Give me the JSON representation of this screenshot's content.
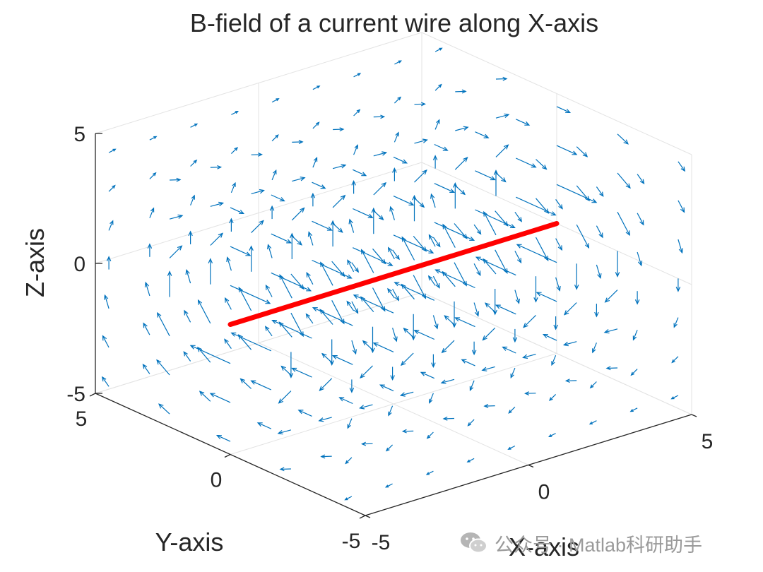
{
  "chart_data": {
    "type": "quiver3",
    "title": "B-field of a current wire along X-axis",
    "xlabel": "X-axis",
    "ylabel": "Y-axis",
    "zlabel": "Z-axis",
    "xlim": [
      -5,
      5
    ],
    "ylim": [
      -5,
      5
    ],
    "zlim": [
      -5,
      5
    ],
    "xticks": [
      "-5",
      "0",
      "5"
    ],
    "yticks": [
      "-5",
      "0",
      "5"
    ],
    "zticks": [
      "-5",
      "0",
      "5"
    ],
    "grid": true,
    "wire": {
      "x": [
        -5,
        5
      ],
      "y": [
        0,
        0
      ],
      "z": [
        0,
        0
      ],
      "color": "#ff0000"
    },
    "field": {
      "grid_x": [
        -5,
        -3.75,
        -2.5,
        -1.25,
        0,
        1.25,
        2.5,
        3.75,
        5
      ],
      "grid_y": [
        -4.5,
        -2.25,
        0,
        2.25,
        4.5
      ],
      "grid_z": [
        -4.5,
        -3,
        -1.5,
        0,
        1.5,
        3,
        4.5
      ],
      "formula": "B = (0, -z, y) / (y^2 + z^2)",
      "color": "#0072bd"
    }
  },
  "watermark": {
    "text": "公众号 · Matlab科研助手",
    "icon": "wechat-icon"
  }
}
